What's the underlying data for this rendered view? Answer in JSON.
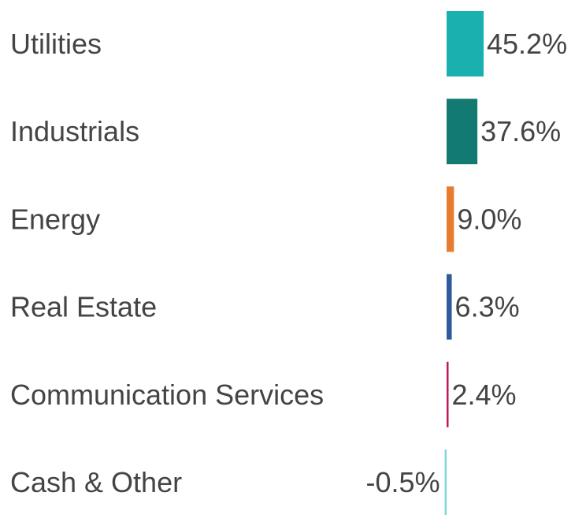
{
  "chart_data": {
    "type": "bar",
    "orientation": "horizontal",
    "categories": [
      "Utilities",
      "Industrials",
      "Energy",
      "Real Estate",
      "Communication Services",
      "Cash & Other"
    ],
    "values": [
      45.2,
      37.6,
      9.0,
      6.3,
      2.4,
      -0.5
    ],
    "value_labels": [
      "45.2%",
      "37.6%",
      "9.0%",
      "6.3%",
      "2.4%",
      "-0.5%"
    ],
    "colors": [
      "#1ab0b0",
      "#137a72",
      "#e57c2f",
      "#2f5b9e",
      "#c2185b",
      "#7fd6d6"
    ],
    "title": "",
    "xlabel": "",
    "ylabel": "",
    "grid": false,
    "legend": "none"
  }
}
